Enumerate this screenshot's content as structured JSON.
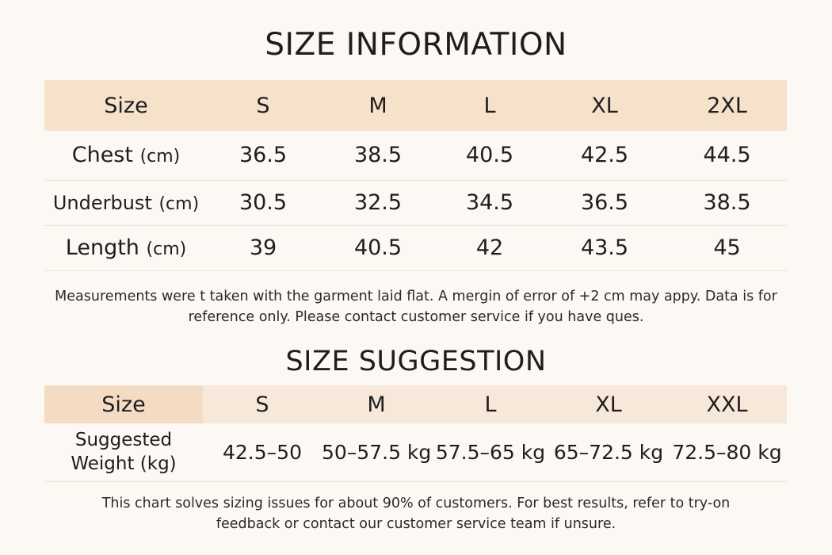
{
  "size_information": {
    "title": "SIZE INFORMATION",
    "header": [
      "Size",
      "S",
      "M",
      "L",
      "XL",
      "2XL"
    ],
    "rows": [
      {
        "label": "Chest",
        "unit": "(cm)",
        "values": [
          "36.5",
          "38.5",
          "40.5",
          "42.5",
          "44.5"
        ]
      },
      {
        "label": "Underbust",
        "unit": "(cm)",
        "values": [
          "30.5",
          "32.5",
          "34.5",
          "36.5",
          "38.5"
        ]
      },
      {
        "label": "Length",
        "unit": "(cm)",
        "values": [
          "39",
          "40.5",
          "42",
          "43.5",
          "45"
        ]
      }
    ],
    "note_line1": "Measurements were t taken with the garment laid flat. A mergin of error of +2 cm may appy. Data is for",
    "note_line2": "reference only. Please contact customer service if you have ques."
  },
  "size_suggestion": {
    "title": "SIZE SUGGESTION",
    "header": [
      "Size",
      "S",
      "M",
      "L",
      "XL",
      "XXL"
    ],
    "row": {
      "label_line1": "Suggested",
      "label_line2": "Weight (kg)",
      "values": [
        "42.5–50",
        "50–57.5 kg",
        "57.5–65 kg",
        "65–72.5 kg",
        "72.5–80 kg"
      ]
    },
    "note_line1": "This chart solves sizing issues for about 90% of customers. For best results, refer to try-on",
    "note_line2": "feedback or contact our customer service team if unsure."
  },
  "colors": {
    "background": "#fcf8f3",
    "header_fill": "#f6e1cb",
    "text": "#1e1e1e"
  }
}
